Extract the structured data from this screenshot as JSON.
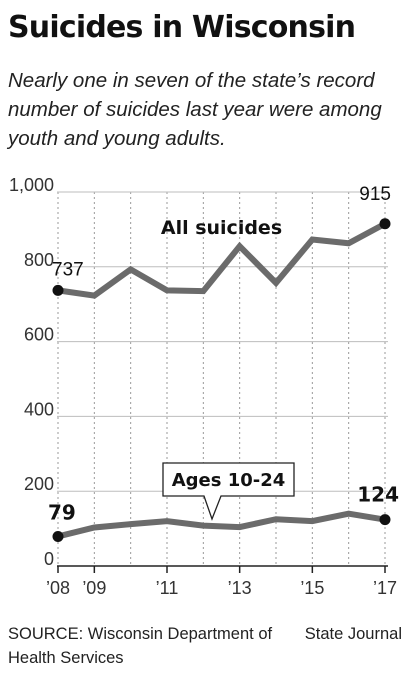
{
  "title": "Suicides in Wisconsin",
  "subtitle": "Nearly one in seven of the state’s record number of suicides last year were among youth and young adults.",
  "source": "SOURCE: Wisconsin Department of Health Services",
  "credit": "State Journal",
  "chart_data": {
    "type": "line",
    "x": [
      2008,
      2009,
      2010,
      2011,
      2012,
      2013,
      2014,
      2015,
      2016,
      2017
    ],
    "x_tick_labels": [
      {
        "x": 2008,
        "label": "’08"
      },
      {
        "x": 2009,
        "label": "’09"
      },
      {
        "x": 2011,
        "label": "’11"
      },
      {
        "x": 2013,
        "label": "’13"
      },
      {
        "x": 2015,
        "label": "’15"
      },
      {
        "x": 2017,
        "label": "’17"
      }
    ],
    "y_ticks": [
      {
        "value": 0,
        "label": "0"
      },
      {
        "value": 200,
        "label": "200"
      },
      {
        "value": 400,
        "label": "400"
      },
      {
        "value": 600,
        "label": "600"
      },
      {
        "value": 800,
        "label": "800"
      },
      {
        "value": 1000,
        "label": "1,000"
      }
    ],
    "ylim": [
      0,
      1000
    ],
    "grid": "vertical dotted",
    "series": [
      {
        "name": "All suicides",
        "values": [
          737,
          723,
          793,
          737,
          735,
          855,
          757,
          873,
          863,
          915
        ],
        "color": "#6b6b6b",
        "endpoint_labels": {
          "first": "737",
          "last": "915"
        }
      },
      {
        "name": "Ages 10-24",
        "values": [
          79,
          103,
          112,
          120,
          108,
          104,
          125,
          120,
          140,
          124
        ],
        "color": "#6b6b6b",
        "endpoint_labels": {
          "first": "79",
          "last": "124"
        }
      }
    ]
  }
}
